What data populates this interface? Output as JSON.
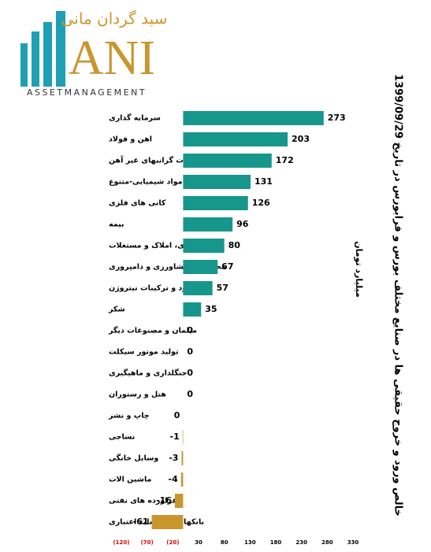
{
  "logo": {
    "name": "سبد گردان مانی",
    "mark": "ANI",
    "tagline": "ASSETMANAGEMENT"
  },
  "chart_data": {
    "type": "hbar",
    "title": "خالص ورود و خروج حقیقی ها در صنایع مختلف  بورس و فرابورس در تاریخ  1399/09/29",
    "axis_label": "میلیارد تومان",
    "categories": [
      "سرمایه گذاری",
      "اهن و فولاد",
      "تولید فلزات گرانبهای غیر آهن",
      "مواد شیمیایی-متنوع",
      "کانی های فلزی",
      "بیمه",
      "انبوه سازی، املاک و مستغلات",
      "محصولات کشاورزی و دامپروری",
      "تولید کود و ترکیبات نیتروژن",
      "شکر",
      "مبلمان و مصنوعات دیگر",
      "تولید موتور سیکلت",
      "جنگلداری و ماهیگیری",
      "هتل و رستوران",
      "چاپ و نشر",
      "نساجی",
      "وسایل خانگی",
      "ماشین الات",
      "فراورده های نفتی",
      "بانکها و موسسات اعتباری"
    ],
    "values": [
      273,
      203,
      172,
      131,
      126,
      96,
      80,
      67,
      57,
      35,
      0,
      0,
      0,
      0,
      0,
      -1,
      -3,
      -4,
      -16,
      -61
    ],
    "positive_color": "#17968b",
    "negative_color": "#c9962e",
    "negative_tick_color": "#e00000",
    "xlim": [
      -120,
      330
    ],
    "xticks": [
      {
        "value": -120,
        "label": "(120)"
      },
      {
        "value": -70,
        "label": "(70)"
      },
      {
        "value": -20,
        "label": "(20)"
      },
      30,
      80,
      130,
      180,
      230,
      280,
      330
    ]
  }
}
